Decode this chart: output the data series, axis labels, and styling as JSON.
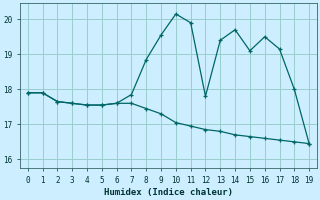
{
  "xlabel": "Humidex (Indice chaleur)",
  "bg_color": "#cceeff",
  "grid_color": "#99cccc",
  "line_color": "#006666",
  "xlim": [
    -0.5,
    19.5
  ],
  "ylim": [
    15.75,
    20.45
  ],
  "yticks": [
    16,
    17,
    18,
    19,
    20
  ],
  "xticks": [
    0,
    1,
    2,
    3,
    4,
    5,
    6,
    7,
    8,
    9,
    10,
    11,
    12,
    13,
    14,
    15,
    16,
    17,
    18,
    19
  ],
  "line1_x": [
    0,
    1,
    2,
    3,
    4,
    5,
    6,
    7,
    8,
    9,
    10,
    11,
    12,
    13,
    14,
    15,
    16,
    17,
    18,
    19
  ],
  "line1_y": [
    17.9,
    17.9,
    17.65,
    17.6,
    17.55,
    17.55,
    17.6,
    17.85,
    18.85,
    19.55,
    20.15,
    19.9,
    17.8,
    19.4,
    19.7,
    19.1,
    19.5,
    19.15,
    18.0,
    16.45
  ],
  "line2_x": [
    0,
    1,
    2,
    3,
    4,
    5,
    6,
    7,
    8,
    9,
    10,
    11,
    12,
    13,
    14,
    15,
    16,
    17,
    18,
    19
  ],
  "line2_y": [
    17.9,
    17.9,
    17.65,
    17.6,
    17.55,
    17.55,
    17.6,
    17.6,
    17.45,
    17.3,
    17.05,
    16.95,
    16.85,
    16.8,
    16.7,
    16.65,
    16.6,
    16.55,
    16.5,
    16.45
  ]
}
